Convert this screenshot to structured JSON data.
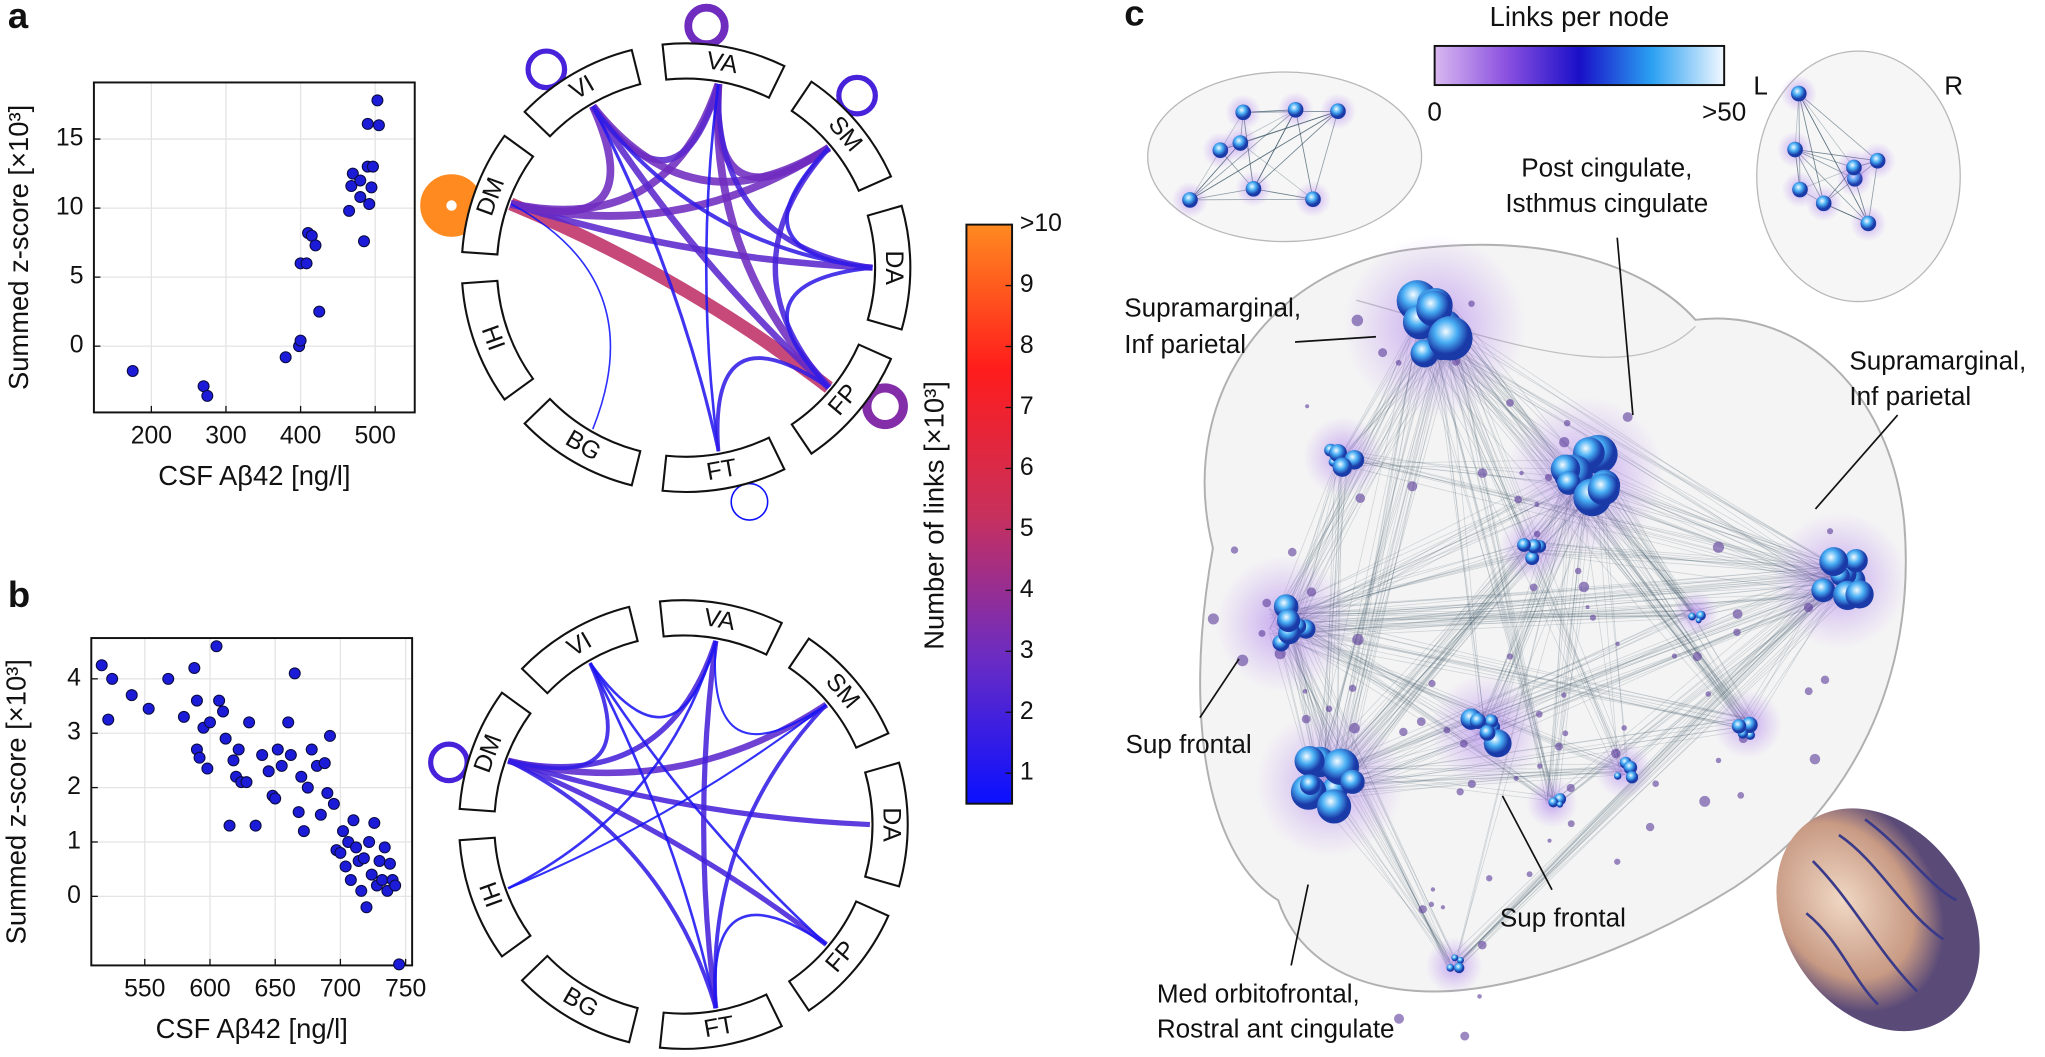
{
  "panel_labels": [
    "a",
    "b",
    "c"
  ],
  "chart_data": [
    {
      "type": "scatter",
      "xlabel": "CSF Aβ42 [ng/l]",
      "ylabel": "Summed z-score [×10³]",
      "color": "#1c1cd8",
      "grid": true,
      "xlim": [
        123,
        553
      ],
      "ylim": [
        -4.8,
        19.1
      ],
      "xticks": [
        200,
        300,
        400,
        500
      ],
      "yticks": [
        0,
        5,
        10,
        15
      ],
      "x": [
        175,
        270,
        275,
        380,
        398,
        400,
        400,
        408,
        410,
        415,
        420,
        425,
        465,
        468,
        470,
        480,
        485,
        490,
        490,
        495,
        497,
        503,
        505,
        492,
        480
      ],
      "values": [
        -1.8,
        -2.9,
        -3.6,
        -0.8,
        0,
        0.4,
        6,
        6,
        8.2,
        8,
        7.3,
        2.5,
        9.8,
        11.6,
        12.5,
        12,
        7.6,
        13,
        16.1,
        11.5,
        13,
        17.8,
        16,
        10.3,
        10.8
      ]
    },
    {
      "type": "chord",
      "nodes": [
        "VI",
        "VA",
        "SM",
        "DA",
        "FP",
        "FT",
        "BG",
        "HI",
        "DM"
      ],
      "links": [
        {
          "source": "DM",
          "target": "FP",
          "value": 5
        },
        {
          "source": "DM",
          "target": "VA",
          "value": 3
        },
        {
          "source": "DM",
          "target": "SM",
          "value": 3
        },
        {
          "source": "DM",
          "target": "DA",
          "value": 2.5
        },
        {
          "source": "DM",
          "target": "VI",
          "value": 3
        },
        {
          "source": "DM",
          "target": "BG",
          "value": 0.6
        },
        {
          "source": "VI",
          "target": "VA",
          "value": 2.5
        },
        {
          "source": "VI",
          "target": "SM",
          "value": 3
        },
        {
          "source": "VI",
          "target": "FP",
          "value": 2.5
        },
        {
          "source": "VI",
          "target": "FT",
          "value": 1.2
        },
        {
          "source": "VI",
          "target": "DA",
          "value": 1.5
        },
        {
          "source": "VA",
          "target": "SM",
          "value": 3
        },
        {
          "source": "VA",
          "target": "FP",
          "value": 3
        },
        {
          "source": "VA",
          "target": "DA",
          "value": 2
        },
        {
          "source": "VA",
          "target": "FT",
          "value": 1
        },
        {
          "source": "SM",
          "target": "FP",
          "value": 2
        },
        {
          "source": "SM",
          "target": "DA",
          "value": 1.5
        },
        {
          "source": "FP",
          "target": "FT",
          "value": 1.5
        },
        {
          "source": "FP",
          "target": "DA",
          "value": 1.5
        },
        {
          "source": "VI",
          "target": "VI",
          "value": 2
        },
        {
          "source": "VA",
          "target": "VA",
          "value": 3
        },
        {
          "source": "SM",
          "target": "SM",
          "value": 2
        },
        {
          "source": "FP",
          "target": "FP",
          "value": 3.5
        },
        {
          "source": "FT",
          "target": "FT",
          "value": 0.6
        },
        {
          "source": "DM",
          "target": "DM",
          "value": 10
        }
      ]
    },
    {
      "type": "scatter",
      "xlabel": "CSF Aβ42 [ng/l]",
      "ylabel": "Summed z-score [×10³]",
      "color": "#1c1cd8",
      "grid": true,
      "xlim": [
        509,
        755
      ],
      "ylim": [
        -1.27,
        4.75
      ],
      "xticks": [
        550,
        600,
        650,
        700,
        750
      ],
      "yticks": [
        0,
        1,
        2,
        3,
        4
      ],
      "x": [
        517,
        525,
        522,
        540,
        553,
        568,
        580,
        588,
        590,
        590,
        592,
        595,
        598,
        600,
        605,
        607,
        610,
        612,
        615,
        618,
        620,
        622,
        624,
        628,
        630,
        635,
        640,
        645,
        648,
        650,
        652,
        655,
        660,
        662,
        665,
        668,
        670,
        672,
        675,
        678,
        682,
        685,
        688,
        690,
        692,
        695,
        697,
        700,
        702,
        704,
        706,
        708,
        710,
        712,
        714,
        716,
        718,
        720,
        722,
        724,
        726,
        728,
        730,
        732,
        734,
        736,
        738,
        740,
        742,
        745
      ],
      "values": [
        4.25,
        4.0,
        3.25,
        3.7,
        3.45,
        4.0,
        3.3,
        4.2,
        3.6,
        2.7,
        2.55,
        3.1,
        2.35,
        3.2,
        4.6,
        3.6,
        3.4,
        2.9,
        1.3,
        2.5,
        2.2,
        2.7,
        2.1,
        2.1,
        3.2,
        1.3,
        2.6,
        2.3,
        1.85,
        1.8,
        2.7,
        2.4,
        3.2,
        2.6,
        4.1,
        1.55,
        2.2,
        1.2,
        2.0,
        2.7,
        2.4,
        1.5,
        2.45,
        1.9,
        2.95,
        1.7,
        0.85,
        0.8,
        1.2,
        0.55,
        1.0,
        0.3,
        1.4,
        0.9,
        0.65,
        0.1,
        0.7,
        -0.2,
        1.0,
        0.4,
        1.35,
        0.2,
        0.65,
        0.3,
        0.9,
        0.1,
        0.6,
        0.3,
        0.2,
        -1.25
      ]
    },
    {
      "type": "chord",
      "nodes": [
        "VI",
        "VA",
        "SM",
        "DA",
        "FP",
        "FT",
        "BG",
        "HI",
        "DM"
      ],
      "links": [
        {
          "source": "DM",
          "target": "VA",
          "value": 2
        },
        {
          "source": "DM",
          "target": "SM",
          "value": 2.5
        },
        {
          "source": "DM",
          "target": "DA",
          "value": 2
        },
        {
          "source": "DM",
          "target": "FP",
          "value": 2
        },
        {
          "source": "DM",
          "target": "FT",
          "value": 1.5
        },
        {
          "source": "DM",
          "target": "VI",
          "value": 1.5
        },
        {
          "source": "VI",
          "target": "VA",
          "value": 1
        },
        {
          "source": "VI",
          "target": "FP",
          "value": 1
        },
        {
          "source": "VI",
          "target": "FT",
          "value": 1
        },
        {
          "source": "VA",
          "target": "FT",
          "value": 2
        },
        {
          "source": "VA",
          "target": "SM",
          "value": 0.8
        },
        {
          "source": "VA",
          "target": "HI",
          "value": 1
        },
        {
          "source": "SM",
          "target": "FT",
          "value": 1.5
        },
        {
          "source": "SM",
          "target": "HI",
          "value": 0.8
        },
        {
          "source": "FT",
          "target": "FP",
          "value": 1
        },
        {
          "source": "DM",
          "target": "DM",
          "value": 2
        }
      ]
    },
    {
      "type": "colorbar",
      "title": "Number of links [×10³]",
      "ylim": [
        0.5,
        10
      ],
      "yticks": [
        1,
        2,
        3,
        4,
        5,
        6,
        7,
        8,
        9,
        {
          "value": 10,
          "label": ">10"
        }
      ],
      "colormap": [
        "#0a10ff",
        "#6a2cc4",
        "#c8305c",
        "#ff1c1c",
        "#ff8a20"
      ]
    },
    {
      "type": "colorbar",
      "title": "Links per node",
      "xlim": [
        0,
        50
      ],
      "xticks": [
        0,
        {
          "value": 50,
          "label": ">50"
        }
      ],
      "colormap": [
        "#d8b8f0",
        "#8a50e0",
        "#1a10c8",
        "#2aa0f2",
        "#f2f8ff"
      ]
    }
  ],
  "brain": {
    "hemisphere_labels": [
      "L",
      "R"
    ],
    "annotations": [
      {
        "lines": [
          "Supramarginal,",
          "Inf parietal"
        ]
      },
      {
        "lines": [
          "Post cingulate,",
          "Isthmus cingulate"
        ]
      },
      {
        "lines": [
          "Supramarginal,",
          "Inf parietal"
        ]
      },
      {
        "lines": [
          "Sup frontal"
        ]
      },
      {
        "lines": [
          "Sup frontal"
        ]
      },
      {
        "lines": [
          "Med orbitofrontal,",
          "Rostral ant cingulate"
        ]
      }
    ]
  }
}
